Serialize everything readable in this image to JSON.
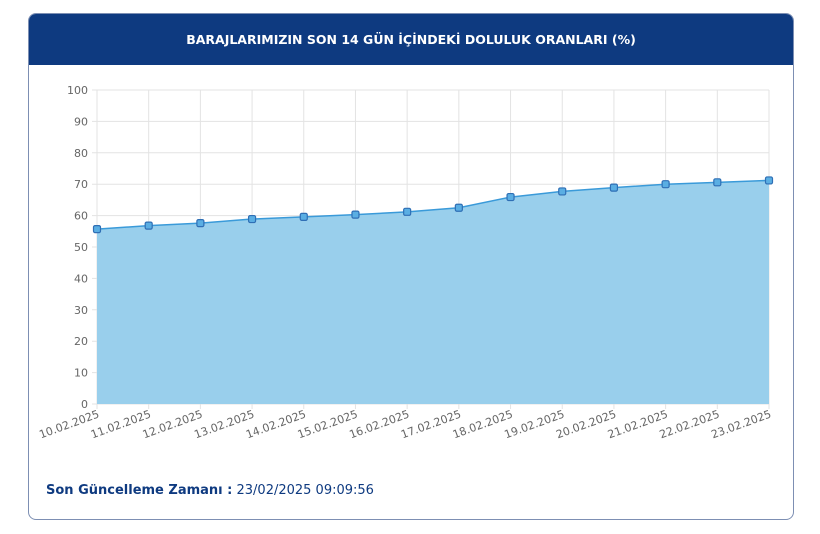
{
  "chart_data": {
    "type": "area",
    "title": "BARAJLARIMIZIN SON 14 GÜN İÇİNDEKİ DOLULUK ORANLARI (%)",
    "categories": [
      "10.02.2025",
      "11.02.2025",
      "12.02.2025",
      "13.02.2025",
      "14.02.2025",
      "15.02.2025",
      "16.02.2025",
      "17.02.2025",
      "18.02.2025",
      "19.02.2025",
      "20.02.2025",
      "21.02.2025",
      "22.02.2025",
      "23.02.2025"
    ],
    "values": [
      55.7,
      56.8,
      57.6,
      58.9,
      59.6,
      60.3,
      61.2,
      62.5,
      65.9,
      67.7,
      68.9,
      70.0,
      70.6,
      71.2
    ],
    "ylim": [
      0,
      100
    ],
    "yticks": [
      0,
      10,
      20,
      30,
      40,
      50,
      60,
      70,
      80,
      90,
      100
    ],
    "grid": true,
    "colors": {
      "fill": "#99cfec",
      "line": "#3a9ad9",
      "marker": "#2f6fb5",
      "header": "#0e3a80"
    }
  },
  "footer": {
    "label": "Son Güncelleme Zamanı :",
    "value": "23/02/2025 09:09:56"
  }
}
